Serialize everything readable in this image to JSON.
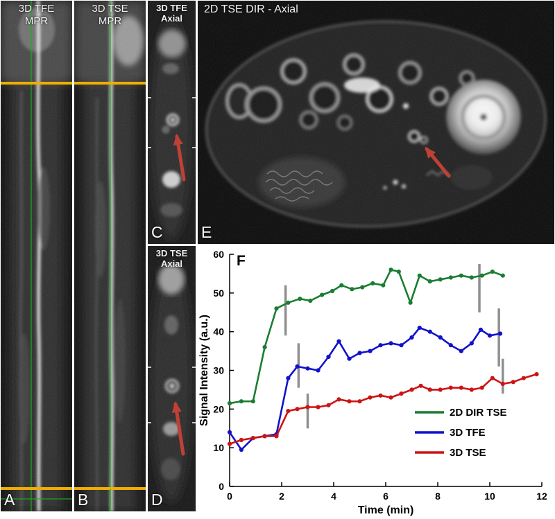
{
  "colors": {
    "figure_background": "#ffffff",
    "panel_background": "#000000",
    "annotation_arrow": "#bf4136",
    "slice_marker_yellow": "#efaf00",
    "reference_line_green": "#19b219",
    "panel_text": "#f2f2f2"
  },
  "panels": {
    "a": {
      "title1": "3D TFE",
      "title2": "MPR",
      "letter": "A"
    },
    "b": {
      "title1": "3D TSE",
      "title2": "MPR",
      "letter": "B"
    },
    "c": {
      "title1": "3D TFE",
      "title2": "Axial",
      "letter": "C"
    },
    "d": {
      "title1": "3D TSE",
      "title2": "Axial",
      "letter": "D"
    },
    "e": {
      "title": "2D TSE DIR - Axial",
      "letter": "E"
    },
    "f": {
      "letter": "F"
    }
  },
  "chart_data": {
    "type": "line",
    "title": "",
    "xlabel": "Time (min)",
    "ylabel": "Signal Intensity (a.u.)",
    "xlim": [
      0,
      12
    ],
    "ylim": [
      0,
      60
    ],
    "xticks": [
      0,
      2,
      4,
      6,
      8,
      10,
      12
    ],
    "yticks": [
      0,
      10,
      20,
      30,
      40,
      50,
      60
    ],
    "grid": false,
    "legend_position": "bottom-right",
    "series": [
      {
        "name": "2D DIR TSE",
        "color": "#1a7d32",
        "points": [
          [
            0,
            21.5
          ],
          [
            0.45,
            22
          ],
          [
            0.9,
            22
          ],
          [
            1.35,
            36
          ],
          [
            1.8,
            46
          ],
          [
            2.25,
            47.5
          ],
          [
            2.7,
            48.5
          ],
          [
            3.1,
            48
          ],
          [
            3.55,
            49.5
          ],
          [
            3.95,
            50.5
          ],
          [
            4.3,
            52
          ],
          [
            4.7,
            51
          ],
          [
            5.1,
            51.5
          ],
          [
            5.5,
            52.5
          ],
          [
            5.9,
            52
          ],
          [
            6.2,
            56
          ],
          [
            6.5,
            55.5
          ],
          [
            6.95,
            47.5
          ],
          [
            7.3,
            54.5
          ],
          [
            7.7,
            53
          ],
          [
            8.1,
            53.5
          ],
          [
            8.5,
            54
          ],
          [
            8.9,
            54.5
          ],
          [
            9.3,
            54
          ],
          [
            9.7,
            54.5
          ],
          [
            10.1,
            55.5
          ],
          [
            10.5,
            54.5
          ]
        ]
      },
      {
        "name": "3D TFE",
        "color": "#1212cc",
        "points": [
          [
            0,
            14
          ],
          [
            0.45,
            9.5
          ],
          [
            0.9,
            12.5
          ],
          [
            1.35,
            13
          ],
          [
            1.8,
            13.5
          ],
          [
            2.25,
            28
          ],
          [
            2.6,
            31
          ],
          [
            3.0,
            30.5
          ],
          [
            3.4,
            30
          ],
          [
            3.8,
            33.5
          ],
          [
            4.2,
            37.5
          ],
          [
            4.6,
            33
          ],
          [
            5.0,
            34.5
          ],
          [
            5.4,
            35
          ],
          [
            5.8,
            36.5
          ],
          [
            6.2,
            37
          ],
          [
            6.6,
            36.5
          ],
          [
            7.0,
            38.5
          ],
          [
            7.3,
            41
          ],
          [
            7.7,
            40
          ],
          [
            8.1,
            38.5
          ],
          [
            8.5,
            36.5
          ],
          [
            8.9,
            35
          ],
          [
            9.3,
            37
          ],
          [
            9.65,
            40.5
          ],
          [
            10.0,
            39
          ],
          [
            10.4,
            39.5
          ]
        ]
      },
      {
        "name": "3D TSE",
        "color": "#cc1414",
        "points": [
          [
            0,
            11
          ],
          [
            0.45,
            12
          ],
          [
            0.9,
            12.5
          ],
          [
            1.35,
            13
          ],
          [
            1.8,
            13
          ],
          [
            2.25,
            19.5
          ],
          [
            2.6,
            20
          ],
          [
            3.0,
            20.5
          ],
          [
            3.4,
            20.5
          ],
          [
            3.8,
            21
          ],
          [
            4.2,
            22.5
          ],
          [
            4.6,
            22
          ],
          [
            5.0,
            22
          ],
          [
            5.4,
            23
          ],
          [
            5.8,
            23.5
          ],
          [
            6.2,
            23
          ],
          [
            6.6,
            24
          ],
          [
            7.0,
            25
          ],
          [
            7.35,
            26
          ],
          [
            7.7,
            25
          ],
          [
            8.1,
            25
          ],
          [
            8.5,
            25.5
          ],
          [
            8.9,
            25.5
          ],
          [
            9.3,
            25
          ],
          [
            9.7,
            25.5
          ],
          [
            10.1,
            28
          ],
          [
            10.5,
            26.5
          ],
          [
            10.9,
            27
          ],
          [
            11.3,
            28
          ],
          [
            11.8,
            29
          ]
        ]
      }
    ],
    "error_bars": {
      "color": "#8f8f8f",
      "segments": [
        {
          "x": 2.15,
          "y1": 39,
          "y2": 52
        },
        {
          "x": 2.65,
          "y1": 25.5,
          "y2": 37
        },
        {
          "x": 3.0,
          "y1": 15,
          "y2": 24
        },
        {
          "x": 9.6,
          "y1": 45,
          "y2": 57.5
        },
        {
          "x": 10.35,
          "y1": 31,
          "y2": 46
        },
        {
          "x": 10.5,
          "y1": 24,
          "y2": 33
        }
      ]
    }
  }
}
